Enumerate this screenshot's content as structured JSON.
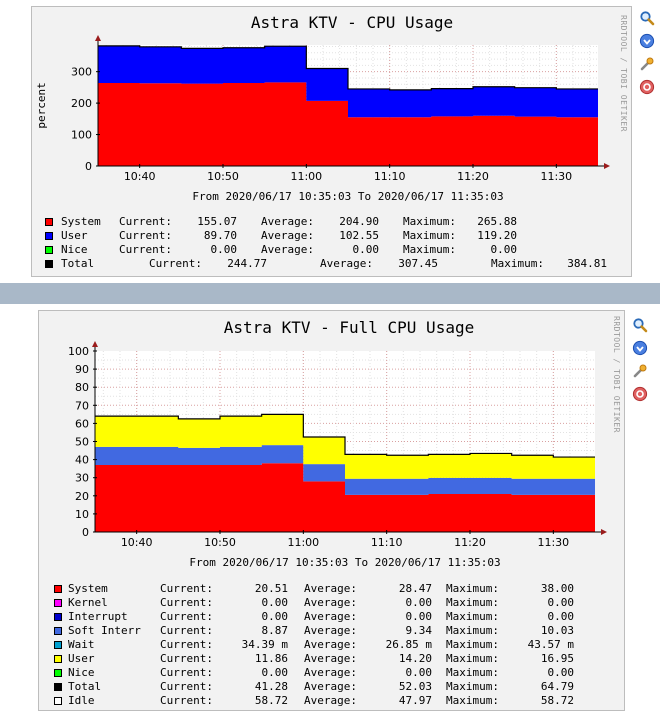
{
  "charts": [
    {
      "title": "Astra KTV - CPU Usage",
      "ylabel": "percent",
      "range_text": "From 2020/06/17 10:35:03 To 2020/06/17 11:35:03",
      "legend": [
        {
          "name": "System",
          "color": "#ff0000",
          "cur_label": "Current:",
          "cur": "155.07",
          "avg_label": "Average:",
          "avg": "204.90",
          "max_label": "Maximum:",
          "max": "265.88"
        },
        {
          "name": "User",
          "color": "#0000ff",
          "cur_label": "Current:",
          "cur": "89.70",
          "avg_label": "Average:",
          "avg": "102.55",
          "max_label": "Maximum:",
          "max": "119.20"
        },
        {
          "name": "Nice",
          "color": "#00ff00",
          "cur_label": "Current:",
          "cur": "0.00",
          "avg_label": "Average:",
          "avg": "0.00",
          "max_label": "Maximum:",
          "max": "0.00"
        },
        {
          "name": "Total",
          "color": "#000000",
          "cur_label": "Current:",
          "cur": "244.77",
          "avg_label": "Average:",
          "avg": "307.45",
          "max_label": "Maximum:",
          "max": "384.81"
        }
      ]
    },
    {
      "title": "Astra KTV - Full CPU Usage",
      "range_text": "From 2020/06/17 10:35:03 To 2020/06/17 11:35:03",
      "legend": [
        {
          "name": "System",
          "color": "#ff0000",
          "cur_label": "Current:",
          "cur": "20.51",
          "avg_label": "Average:",
          "avg": "28.47",
          "max_label": "Maximum:",
          "max": "38.00"
        },
        {
          "name": "Kernel",
          "color": "#ff00ff",
          "cur_label": "Current:",
          "cur": "0.00",
          "avg_label": "Average:",
          "avg": "0.00",
          "max_label": "Maximum:",
          "max": "0.00"
        },
        {
          "name": "Interrupt",
          "color": "#0000cc",
          "cur_label": "Current:",
          "cur": "0.00",
          "avg_label": "Average:",
          "avg": "0.00",
          "max_label": "Maximum:",
          "max": "0.00"
        },
        {
          "name": "Soft Interr",
          "color": "#4169e1",
          "cur_label": "Current:",
          "cur": "8.87",
          "avg_label": "Average:",
          "avg": "9.34",
          "max_label": "Maximum:",
          "max": "10.03"
        },
        {
          "name": "Wait",
          "color": "#00a0d0",
          "cur_label": "Current:",
          "cur": "34.39 m",
          "avg_label": "Average:",
          "avg": "26.85 m",
          "max_label": "Maximum:",
          "max": "43.57 m"
        },
        {
          "name": "User",
          "color": "#ffff00",
          "cur_label": "Current:",
          "cur": "11.86",
          "avg_label": "Average:",
          "avg": "14.20",
          "max_label": "Maximum:",
          "max": "16.95"
        },
        {
          "name": "Nice",
          "color": "#00ff00",
          "cur_label": "Current:",
          "cur": "0.00",
          "avg_label": "Average:",
          "avg": "0.00",
          "max_label": "Maximum:",
          "max": "0.00"
        },
        {
          "name": "Total",
          "color": "#000000",
          "cur_label": "Current:",
          "cur": "41.28",
          "avg_label": "Average:",
          "avg": "52.03",
          "max_label": "Maximum:",
          "max": "64.79"
        },
        {
          "name": "Idle",
          "color": "#ffffff",
          "cur_label": "Current:",
          "cur": "58.72",
          "avg_label": "Average:",
          "avg": "47.97",
          "max_label": "Maximum:",
          "max": "58.72"
        }
      ]
    }
  ],
  "watermark": "RRDTOOL / TOBI OETIKER",
  "icons": [
    "zoom-icon",
    "arrow-down-circle-icon",
    "wrench-icon",
    "close-circle-icon"
  ],
  "chart_data": [
    {
      "type": "area",
      "stacked": true,
      "title": "Astra KTV - CPU Usage",
      "ylabel": "percent",
      "xlabel": "",
      "ylim": [
        0,
        384.81
      ],
      "yticks": [
        0,
        100,
        200,
        300
      ],
      "x_ticks": [
        "10:40",
        "10:50",
        "11:00",
        "11:10",
        "11:20",
        "11:30"
      ],
      "x": [
        "10:35",
        "10:40",
        "10:45",
        "10:50",
        "10:55",
        "11:00",
        "11:05",
        "11:10",
        "11:15",
        "11:20",
        "11:25",
        "11:30",
        "11:35"
      ],
      "series": [
        {
          "name": "System",
          "color": "#ff0000",
          "values": [
            264,
            263,
            262,
            264,
            266,
            207,
            155,
            155,
            158,
            160,
            157,
            155,
            155
          ]
        },
        {
          "name": "User",
          "color": "#0000ff",
          "values": [
            118,
            116,
            112,
            112,
            115,
            103,
            90,
            87,
            88,
            92,
            92,
            90,
            90
          ]
        },
        {
          "name": "Nice",
          "color": "#00ff00",
          "values": [
            0,
            0,
            0,
            0,
            0,
            0,
            0,
            0,
            0,
            0,
            0,
            0,
            0
          ]
        }
      ],
      "grid": true,
      "legend": "bottom"
    },
    {
      "type": "area",
      "stacked": true,
      "title": "Astra KTV - Full CPU Usage",
      "xlabel": "",
      "ylabel": "",
      "ylim": [
        0,
        100
      ],
      "yticks": [
        0,
        10,
        20,
        30,
        40,
        50,
        60,
        70,
        80,
        90,
        100
      ],
      "x_ticks": [
        "10:40",
        "10:50",
        "11:00",
        "11:10",
        "11:20",
        "11:30"
      ],
      "x": [
        "10:35",
        "10:40",
        "10:45",
        "10:50",
        "10:55",
        "11:00",
        "11:05",
        "11:10",
        "11:15",
        "11:20",
        "11:25",
        "11:30",
        "11:35"
      ],
      "series": [
        {
          "name": "System",
          "color": "#ff0000",
          "values": [
            37,
            37,
            37,
            37,
            38,
            28,
            20.5,
            20.5,
            21,
            21,
            20.5,
            20.5,
            20.5
          ]
        },
        {
          "name": "Soft Interr",
          "color": "#4169e1",
          "values": [
            10,
            10,
            9.5,
            10,
            10,
            9.5,
            8.9,
            8.9,
            8.9,
            8.9,
            8.9,
            8.9,
            8.9
          ]
        },
        {
          "name": "User",
          "color": "#ffff00",
          "values": [
            17,
            17,
            16,
            17,
            17,
            15,
            13.5,
            13,
            13,
            13.5,
            13,
            12,
            11.9
          ]
        }
      ],
      "grid": true,
      "legend": "bottom"
    }
  ]
}
